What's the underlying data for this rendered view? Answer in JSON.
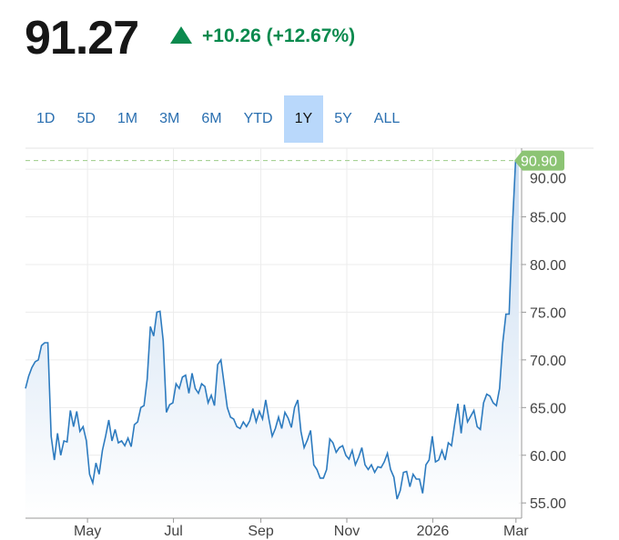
{
  "header": {
    "price": "91.27",
    "change": "+10.26 (+12.67%)",
    "direction_icon": "triangle-up-icon"
  },
  "tabs": [
    {
      "label": "1D"
    },
    {
      "label": "5D"
    },
    {
      "label": "1M"
    },
    {
      "label": "3M"
    },
    {
      "label": "6M"
    },
    {
      "label": "YTD"
    },
    {
      "label": "1Y",
      "active": true
    },
    {
      "label": "5Y"
    },
    {
      "label": "ALL"
    }
  ],
  "colors": {
    "up": "#0b8a4e",
    "line": "#2d7bbf",
    "tag": "#8cc474",
    "active_tab": "#b9d8fb"
  },
  "chart_data": {
    "type": "area",
    "title": "",
    "xlabel": "",
    "ylabel": "",
    "xlim": [
      0,
      352
    ],
    "ylim": [
      53.4,
      92.2
    ],
    "grid": true,
    "x_ticks": [
      {
        "label": "May",
        "day": 44
      },
      {
        "label": "Jul",
        "day": 105
      },
      {
        "label": "Sep",
        "day": 167
      },
      {
        "label": "Nov",
        "day": 228
      },
      {
        "label": "2026",
        "day": 289
      },
      {
        "label": "Mar",
        "day": 348
      }
    ],
    "y_ticks": [
      {
        "value": 55,
        "label": "55.00"
      },
      {
        "value": 60,
        "label": "60.00"
      },
      {
        "value": 65,
        "label": "65.00"
      },
      {
        "value": 70,
        "label": "70.00"
      },
      {
        "value": 75,
        "label": "75.00"
      },
      {
        "value": 80,
        "label": "80.00"
      },
      {
        "value": 85,
        "label": "85.00"
      },
      {
        "value": 90,
        "label": "90.00"
      }
    ],
    "last_value": {
      "value": 90.9,
      "label": "90.90"
    },
    "x_range_days": [
      0,
      350
    ],
    "values": [
      67,
      68.3,
      69.2,
      69.8,
      70,
      71.5,
      71.8,
      71.8,
      62,
      59.5,
      62.3,
      60,
      61.5,
      61.4,
      64.7,
      63,
      64.6,
      62.5,
      63,
      61.5,
      58,
      57.1,
      59.2,
      58,
      60.5,
      62,
      63.7,
      61.5,
      62.7,
      61.3,
      61.5,
      61,
      61.8,
      60.9,
      63.2,
      63.5,
      65,
      65.2,
      68,
      73.5,
      72.5,
      75,
      75.1,
      72,
      64.5,
      65.3,
      65.5,
      67.5,
      67,
      68.2,
      68.4,
      66.5,
      68.6,
      67,
      66.5,
      67.5,
      67.2,
      65.5,
      66.3,
      65.2,
      69.5,
      70,
      67.5,
      65,
      64,
      63.8,
      63,
      62.8,
      63.5,
      63,
      63.6,
      64.9,
      63.5,
      64.6,
      63.8,
      65.8,
      63.8,
      62,
      62.8,
      64,
      62.8,
      64.5,
      63.9,
      62.9,
      65,
      65.8,
      62.5,
      60.8,
      61.6,
      62.6,
      59,
      58.5,
      57.6,
      57.6,
      58.5,
      61.7,
      61.3,
      60.3,
      60.8,
      61,
      60,
      59.6,
      60.5,
      59,
      59.8,
      60.8,
      59,
      58.5,
      59,
      58.2,
      58.8,
      58.7,
      59.3,
      60.2,
      58.5,
      57.7,
      55.4,
      56.3,
      58.2,
      58.3,
      56.7,
      58,
      57.5,
      57.5,
      56,
      59,
      59.5,
      62,
      59.3,
      59.5,
      60.5,
      59.5,
      61.3,
      61,
      63.3,
      65.4,
      62.3,
      65.3,
      63.5,
      64.1,
      64.7,
      63,
      62.7,
      65.5,
      66.4,
      66.2,
      65.5,
      65.2,
      67,
      71.8,
      74.8,
      74.8,
      84,
      90.9,
      90.9
    ]
  }
}
